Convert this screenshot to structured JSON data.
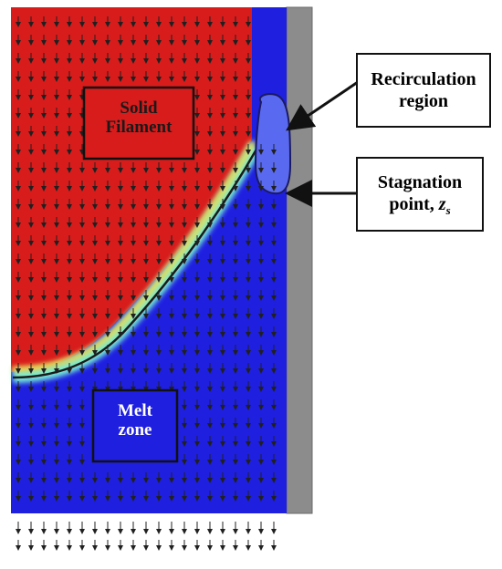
{
  "labels": {
    "solid_line1": "Solid",
    "solid_line2": "Filament",
    "melt_line1": "Melt",
    "melt_line2": "zone",
    "recirc_line1": "Recirculation",
    "recirc_line2": "region",
    "stagnation_line1": "Stagnation",
    "stagnation_line2_text": "point, ",
    "stagnation_symbol": "z",
    "stagnation_subscript": "s"
  },
  "colors": {
    "solid": "#d81c1c",
    "melt": "#1f1fe0",
    "recirculation": "#5a6af0",
    "wall": "#8c8c8c",
    "arrow": "#202020",
    "interface_glow": "#7fffd4",
    "interface_yellow": "#ffe040"
  },
  "icons": {
    "flow_arrows": "velocity-vector-arrows",
    "pointer_arrows": "callout-arrow"
  }
}
